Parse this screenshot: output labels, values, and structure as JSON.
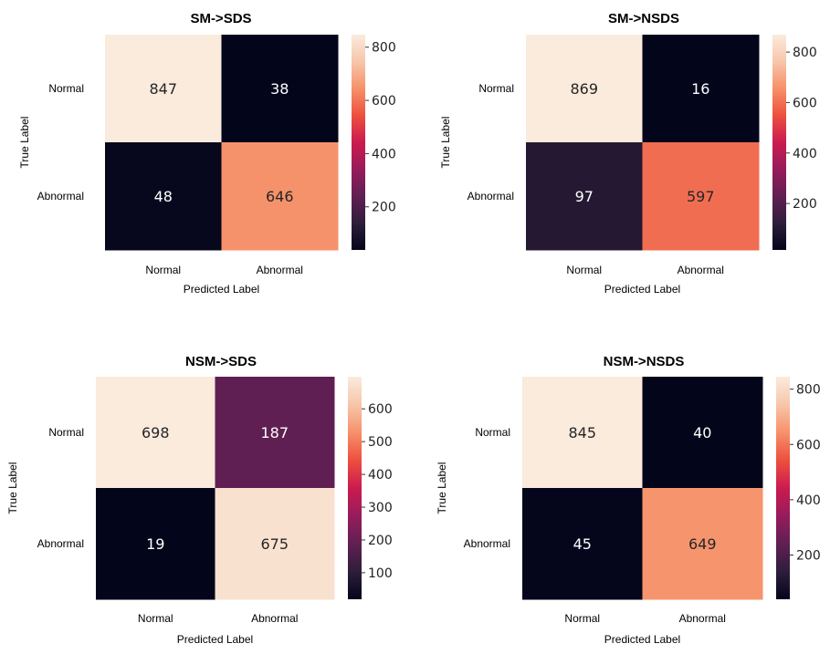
{
  "chart_data": [
    {
      "type": "heatmap",
      "title": "SM->SDS",
      "xlabel": "Predicted Label",
      "ylabel": "True Label",
      "row_labels": [
        "Normal",
        "Abnormal"
      ],
      "col_labels": [
        "Normal",
        "Abnormal"
      ],
      "values": [
        [
          847,
          38
        ],
        [
          48,
          646
        ]
      ],
      "colorbar": {
        "ticks": [
          200,
          400,
          600,
          800
        ]
      }
    },
    {
      "type": "heatmap",
      "title": "SM->NSDS",
      "xlabel": "Predicted Label",
      "ylabel": "True Label",
      "row_labels": [
        "Normal",
        "Abnormal"
      ],
      "col_labels": [
        "Normal",
        "Abnormal"
      ],
      "values": [
        [
          869,
          16
        ],
        [
          97,
          597
        ]
      ],
      "colorbar": {
        "ticks": [
          200,
          400,
          600,
          800
        ]
      }
    },
    {
      "type": "heatmap",
      "title": "NSM->SDS",
      "xlabel": "Predicted Label",
      "ylabel": "True Label",
      "row_labels": [
        "Normal",
        "Abnormal"
      ],
      "col_labels": [
        "Normal",
        "Abnormal"
      ],
      "values": [
        [
          698,
          187
        ],
        [
          19,
          675
        ]
      ],
      "colorbar": {
        "ticks": [
          100,
          200,
          300,
          400,
          500,
          600
        ]
      }
    },
    {
      "type": "heatmap",
      "title": "NSM->NSDS",
      "xlabel": "Predicted Label",
      "ylabel": "True Label",
      "row_labels": [
        "Normal",
        "Abnormal"
      ],
      "col_labels": [
        "Normal",
        "Abnormal"
      ],
      "values": [
        [
          845,
          40
        ],
        [
          45,
          649
        ]
      ],
      "colorbar": {
        "ticks": [
          200,
          400,
          600,
          800
        ]
      }
    }
  ]
}
